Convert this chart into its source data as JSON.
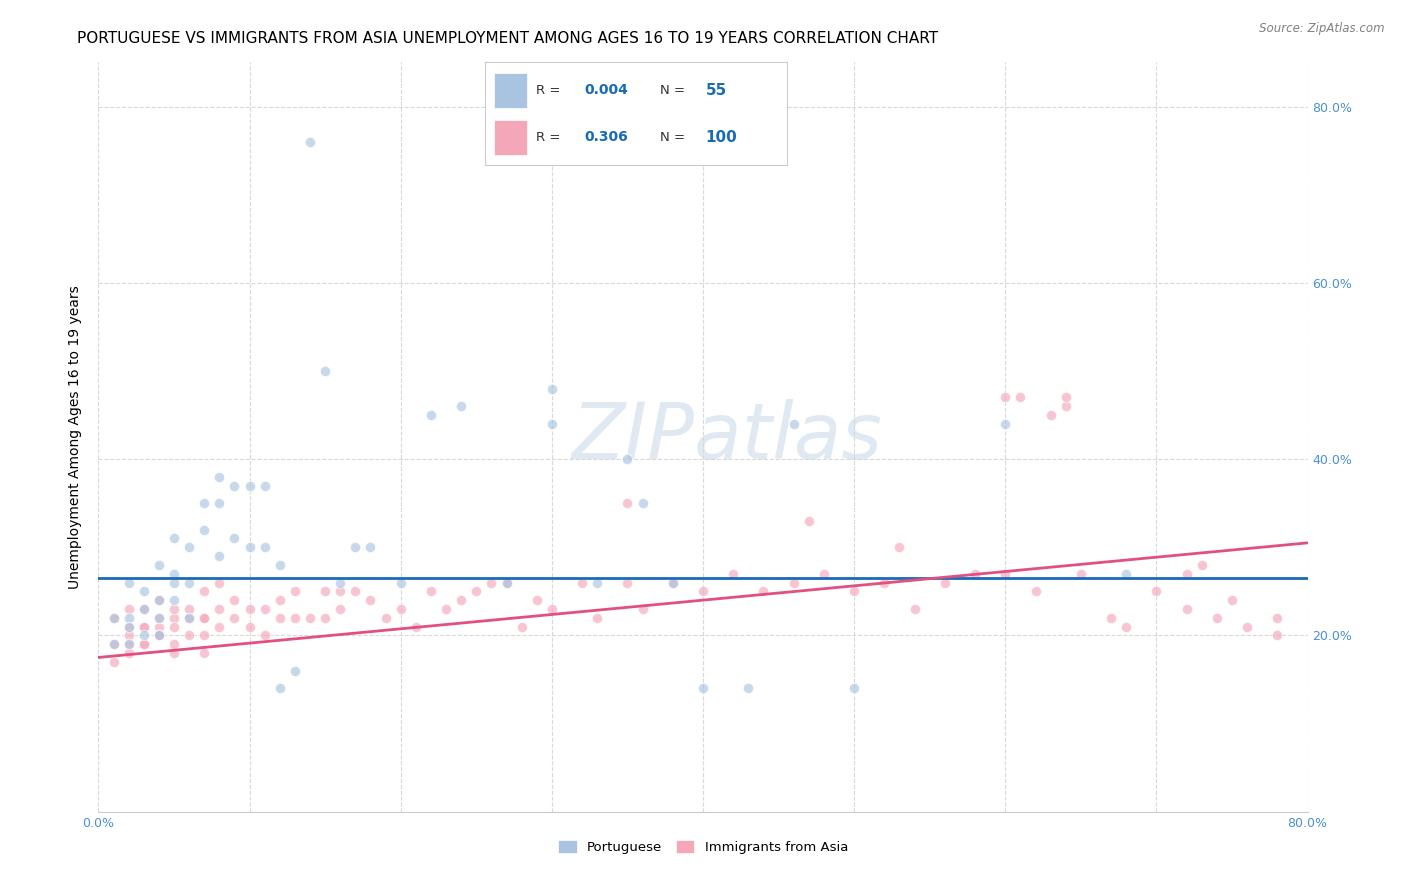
{
  "title": "PORTUGUESE VS IMMIGRANTS FROM ASIA UNEMPLOYMENT AMONG AGES 16 TO 19 YEARS CORRELATION CHART",
  "source": "Source: ZipAtlas.com",
  "ylabel": "Unemployment Among Ages 16 to 19 years",
  "xlim": [
    0.0,
    0.8
  ],
  "ylim": [
    0.0,
    0.85
  ],
  "legend_R1": "0.004",
  "legend_N1": "55",
  "legend_R2": "0.306",
  "legend_N2": "100",
  "color_portuguese": "#a8c4e0",
  "color_asia": "#f4a7b9",
  "line_color_portuguese": "#1a6bb5",
  "line_color_asia": "#e05080",
  "watermark": "ZIPatlas",
  "port_trend": [
    0.0,
    0.8,
    0.265,
    0.265
  ],
  "asia_trend": [
    0.0,
    0.8,
    0.175,
    0.305
  ],
  "background_color": "#ffffff",
  "grid_color": "#c8c8c8",
  "title_fontsize": 11,
  "axis_label_fontsize": 10,
  "tick_fontsize": 9,
  "scatter_size": 55,
  "scatter_alpha": 0.65,
  "scatter_edgecolor": "white",
  "scatter_linewidth": 0.8,
  "portuguese_x": [
    0.01,
    0.01,
    0.02,
    0.02,
    0.02,
    0.02,
    0.03,
    0.03,
    0.03,
    0.04,
    0.04,
    0.04,
    0.04,
    0.05,
    0.05,
    0.05,
    0.05,
    0.06,
    0.06,
    0.06,
    0.07,
    0.07,
    0.08,
    0.08,
    0.08,
    0.09,
    0.09,
    0.1,
    0.1,
    0.11,
    0.11,
    0.12,
    0.12,
    0.13,
    0.14,
    0.15,
    0.16,
    0.17,
    0.18,
    0.2,
    0.22,
    0.24,
    0.27,
    0.3,
    0.3,
    0.33,
    0.35,
    0.36,
    0.38,
    0.4,
    0.43,
    0.46,
    0.5,
    0.6,
    0.68
  ],
  "portuguese_y": [
    0.22,
    0.19,
    0.22,
    0.26,
    0.21,
    0.19,
    0.25,
    0.23,
    0.2,
    0.24,
    0.28,
    0.22,
    0.2,
    0.27,
    0.24,
    0.26,
    0.31,
    0.22,
    0.26,
    0.3,
    0.35,
    0.32,
    0.29,
    0.35,
    0.38,
    0.31,
    0.37,
    0.3,
    0.37,
    0.3,
    0.37,
    0.14,
    0.28,
    0.16,
    0.76,
    0.5,
    0.26,
    0.3,
    0.3,
    0.26,
    0.45,
    0.46,
    0.26,
    0.44,
    0.48,
    0.26,
    0.4,
    0.35,
    0.26,
    0.14,
    0.14,
    0.44,
    0.14,
    0.44,
    0.27
  ],
  "asia_x": [
    0.01,
    0.01,
    0.01,
    0.02,
    0.02,
    0.02,
    0.02,
    0.02,
    0.03,
    0.03,
    0.03,
    0.03,
    0.03,
    0.04,
    0.04,
    0.04,
    0.04,
    0.04,
    0.05,
    0.05,
    0.05,
    0.05,
    0.05,
    0.06,
    0.06,
    0.06,
    0.07,
    0.07,
    0.07,
    0.07,
    0.07,
    0.08,
    0.08,
    0.08,
    0.09,
    0.09,
    0.1,
    0.1,
    0.11,
    0.11,
    0.12,
    0.12,
    0.13,
    0.13,
    0.14,
    0.15,
    0.15,
    0.16,
    0.16,
    0.17,
    0.18,
    0.19,
    0.2,
    0.21,
    0.22,
    0.23,
    0.24,
    0.25,
    0.26,
    0.27,
    0.28,
    0.29,
    0.3,
    0.32,
    0.33,
    0.35,
    0.36,
    0.38,
    0.4,
    0.42,
    0.44,
    0.46,
    0.48,
    0.5,
    0.52,
    0.54,
    0.56,
    0.58,
    0.6,
    0.62,
    0.63,
    0.65,
    0.67,
    0.68,
    0.7,
    0.72,
    0.73,
    0.74,
    0.75,
    0.76,
    0.78,
    0.78,
    0.35,
    0.47,
    0.53,
    0.61,
    0.64,
    0.72,
    0.6,
    0.64
  ],
  "asia_y": [
    0.22,
    0.19,
    0.17,
    0.21,
    0.19,
    0.23,
    0.2,
    0.18,
    0.21,
    0.19,
    0.23,
    0.21,
    0.19,
    0.21,
    0.2,
    0.22,
    0.2,
    0.24,
    0.18,
    0.22,
    0.21,
    0.19,
    0.23,
    0.22,
    0.2,
    0.23,
    0.22,
    0.22,
    0.25,
    0.2,
    0.18,
    0.23,
    0.21,
    0.26,
    0.22,
    0.24,
    0.21,
    0.23,
    0.23,
    0.2,
    0.24,
    0.22,
    0.22,
    0.25,
    0.22,
    0.25,
    0.22,
    0.25,
    0.23,
    0.25,
    0.24,
    0.22,
    0.23,
    0.21,
    0.25,
    0.23,
    0.24,
    0.25,
    0.26,
    0.26,
    0.21,
    0.24,
    0.23,
    0.26,
    0.22,
    0.26,
    0.23,
    0.26,
    0.25,
    0.27,
    0.25,
    0.26,
    0.27,
    0.25,
    0.26,
    0.23,
    0.26,
    0.27,
    0.27,
    0.25,
    0.45,
    0.27,
    0.22,
    0.21,
    0.25,
    0.23,
    0.28,
    0.22,
    0.24,
    0.21,
    0.22,
    0.2,
    0.35,
    0.33,
    0.3,
    0.47,
    0.46,
    0.27,
    0.47,
    0.47
  ]
}
